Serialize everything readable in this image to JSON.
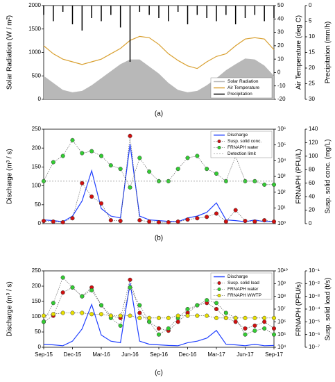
{
  "chart_data": [
    {
      "type": "line",
      "label": "(a)",
      "ylabel": "Solar Radiation (W / m²)",
      "y2label": "Air Temperature (deg C)",
      "y3label": "Precipitation (mm/h)",
      "x": [
        "Sep-15",
        "Oct-15",
        "Nov-15",
        "Dec-15",
        "Jan-16",
        "Feb-16",
        "Mar-16",
        "Apr-16",
        "May-16",
        "Jun-16",
        "Jul-16",
        "Aug-16",
        "Sep-16",
        "Oct-16",
        "Nov-16",
        "Dec-16",
        "Jan-17",
        "Feb-17",
        "Mar-17",
        "Apr-17",
        "May-17",
        "Jun-17",
        "Jul-17",
        "Aug-17",
        "Sep-17"
      ],
      "ylim": [
        0,
        2000
      ],
      "yticks": [
        0,
        500,
        1000,
        1500,
        2000
      ],
      "y2lim": [
        -20,
        50
      ],
      "y2ticks": [
        -20,
        -10,
        0,
        10,
        20,
        30,
        40,
        50
      ],
      "y3lim": [
        30,
        0
      ],
      "y3ticks": [
        30,
        25,
        20,
        15,
        10,
        5,
        0
      ],
      "legend": "lower right",
      "series": [
        {
          "name": "Solar Radiation",
          "color": "#b8b8b8",
          "style": "area",
          "axis": "y",
          "values": [
            500,
            350,
            200,
            150,
            180,
            300,
            450,
            600,
            750,
            850,
            850,
            700,
            550,
            350,
            200,
            150,
            180,
            300,
            450,
            620,
            750,
            870,
            850,
            720,
            500
          ]
        },
        {
          "name": "Air Temperature",
          "color": "#d9a030",
          "style": "line",
          "axis": "y2",
          "values": [
            20,
            14,
            10,
            8,
            6,
            8,
            10,
            14,
            18,
            24,
            27,
            26,
            21,
            14,
            9,
            5,
            3,
            8,
            12,
            14,
            20,
            25,
            26,
            25,
            17
          ]
        },
        {
          "name": "Precipitation",
          "color": "#000000",
          "style": "bars",
          "axis": "y3",
          "values": [
            3,
            5,
            2,
            6,
            8,
            4,
            5,
            3,
            7,
            18,
            2,
            3,
            4,
            5,
            2,
            6,
            3,
            4,
            5,
            3,
            6,
            4,
            3,
            5,
            4
          ]
        }
      ]
    },
    {
      "type": "line",
      "label": "(b)",
      "ylabel": "Discharge (m³ / s)",
      "y2label": "FRNAPH (PFU/L)",
      "y3label": "Susp. solid conc. (mg/L)",
      "x": [
        "Sep-15",
        "Oct-15",
        "Nov-15",
        "Dec-15",
        "Jan-16",
        "Feb-16",
        "Mar-16",
        "Apr-16",
        "May-16",
        "Jun-16",
        "Jul-16",
        "Aug-16",
        "Sep-16",
        "Oct-16",
        "Nov-16",
        "Dec-16",
        "Jan-17",
        "Feb-17",
        "Mar-17",
        "Apr-17",
        "May-17",
        "Jun-17",
        "Jul-17",
        "Aug-17",
        "Sep-17"
      ],
      "ylim": [
        0,
        250
      ],
      "yticks": [
        0,
        50,
        100,
        150,
        200,
        250
      ],
      "y2lim": [
        1,
        1000000
      ],
      "y2log": true,
      "y2ticks": [
        {
          "value": 1,
          "label": "10⁰"
        },
        {
          "value": 10,
          "label": "10¹"
        },
        {
          "value": 100,
          "label": "10²"
        },
        {
          "value": 1000,
          "label": "10³"
        },
        {
          "value": 10000,
          "label": "10⁴"
        },
        {
          "value": 100000,
          "label": "10⁵"
        },
        {
          "value": 1000000,
          "label": "10⁶"
        }
      ],
      "y3lim": [
        0,
        140
      ],
      "y3ticks": [
        0,
        20,
        40,
        60,
        80,
        100,
        120,
        140
      ],
      "legend": "upper right",
      "series": [
        {
          "name": "Discharge",
          "color": "#1f3fff",
          "style": "line",
          "axis": "y",
          "values": [
            10,
            8,
            5,
            20,
            60,
            140,
            40,
            20,
            15,
            210,
            20,
            10,
            8,
            6,
            5,
            15,
            20,
            30,
            55,
            10,
            8,
            5,
            10,
            5,
            6
          ]
        },
        {
          "name": "Susp. solid conc.",
          "color": "#d01010",
          "style": "dots",
          "axis": "y3",
          "values": [
            4,
            3,
            2,
            8,
            60,
            40,
            30,
            5,
            4,
            130,
            5,
            3,
            2,
            2,
            3,
            6,
            8,
            10,
            15,
            3,
            20,
            4,
            3,
            5,
            3
          ]
        },
        {
          "name": "FRNAPH water",
          "color": "#33cc33",
          "style": "dots",
          "axis": "y2",
          "values": [
            500,
            8000,
            20000,
            200000,
            30000,
            40000,
            20000,
            5000,
            3000,
            200,
            15000,
            2000,
            500,
            500,
            3000,
            15000,
            20000,
            3000,
            1500,
            500,
            20000,
            500,
            500,
            300,
            300
          ]
        },
        {
          "name": "Detection limit",
          "color": "#999999",
          "style": "hline",
          "axis": "y2",
          "value": 500
        }
      ]
    },
    {
      "type": "line",
      "label": "(c)",
      "ylabel": "Discharge (m³ / s)",
      "y2label": "FRNAPH (PFU/s)",
      "y3label": "Susp. solid load (t/s)",
      "x": [
        "Sep-15",
        "Oct-15",
        "Nov-15",
        "Dec-15",
        "Jan-16",
        "Feb-16",
        "Mar-16",
        "Apr-16",
        "May-16",
        "Jun-16",
        "Jul-16",
        "Aug-16",
        "Sep-16",
        "Oct-16",
        "Nov-16",
        "Dec-16",
        "Jan-17",
        "Feb-17",
        "Mar-17",
        "Apr-17",
        "May-17",
        "Jun-17",
        "Jul-17",
        "Aug-17",
        "Sep-17"
      ],
      "xticks": [
        "Sep-15",
        "Dec-15",
        "Mar-16",
        "Jun-16",
        "Sep-16",
        "Dec-16",
        "Mar-17",
        "Jun-17",
        "Sep-17"
      ],
      "ylim": [
        0,
        250
      ],
      "yticks": [
        0,
        50,
        100,
        150,
        200,
        250
      ],
      "y2lim": [
        10000,
        10000000000
      ],
      "y2log": true,
      "y2ticks": [
        {
          "value": 10000,
          "label": "10⁴"
        },
        {
          "value": 100000,
          "label": "10⁵"
        },
        {
          "value": 1000000,
          "label": "10⁶"
        },
        {
          "value": 10000000,
          "label": "10⁷"
        },
        {
          "value": 100000000,
          "label": "10⁸"
        },
        {
          "value": 1000000000,
          "label": "10⁹"
        },
        {
          "value": 10000000000,
          "label": "10¹⁰"
        }
      ],
      "y3lim": [
        1e-07,
        0.1
      ],
      "y3log": true,
      "y3ticks": [
        {
          "value": 1e-07,
          "label": "10⁻⁷"
        },
        {
          "value": 1e-06,
          "label": "10⁻⁶"
        },
        {
          "value": 1e-05,
          "label": "10⁻⁵"
        },
        {
          "value": 0.0001,
          "label": "10⁻⁴"
        },
        {
          "value": 0.001,
          "label": "10⁻³"
        },
        {
          "value": 0.01,
          "label": "10⁻²"
        },
        {
          "value": 0.1,
          "label": "10⁻¹"
        }
      ],
      "legend": "upper right",
      "series": [
        {
          "name": "Discharge",
          "color": "#1f3fff",
          "style": "line",
          "axis": "y",
          "values": [
            10,
            8,
            5,
            20,
            60,
            140,
            40,
            20,
            15,
            210,
            20,
            10,
            8,
            6,
            5,
            15,
            20,
            30,
            55,
            10,
            8,
            5,
            10,
            5,
            6
          ]
        },
        {
          "name": "Susp. solid load",
          "color": "#d01010",
          "style": "dots",
          "axis": "y3",
          "values": [
            1e-05,
            3e-05,
            0.002,
            0.005,
            0.001,
            0.005,
            0.0002,
            3e-05,
            2e-05,
            0.02,
            5e-05,
            1e-05,
            3e-06,
            2e-06,
            1e-05,
            5e-05,
            0.0002,
            0.0003,
            0.0001,
            2e-05,
            1e-05,
            3e-06,
            5e-06,
            1e-05,
            3e-06
          ]
        },
        {
          "name": "FRNAPH water",
          "color": "#33cc33",
          "style": "dots",
          "axis": "y2",
          "values": [
            1000000,
            30000000,
            3000000000,
            500000000,
            100000000,
            300000000,
            20000000,
            2000000,
            500000,
            500000000,
            20000000,
            1000000,
            100000,
            300000,
            2000000,
            10000000,
            20000000,
            50000000,
            30000000,
            5000000,
            2000000,
            100000,
            200000,
            300000,
            100000
          ]
        },
        {
          "name": "FRNAPH WWTP",
          "color": "#e8e000",
          "style": "dots",
          "axis": "y2",
          "values": [
            3000000,
            4000000,
            5000000,
            5000000,
            5000000,
            4000000,
            4000000,
            3000000,
            3000000,
            3000000,
            2000000,
            2000000,
            2000000,
            2000000,
            3000000,
            3000000,
            3000000,
            3000000,
            2000000,
            2000000,
            2000000,
            2000000,
            2000000,
            2000000,
            2000000
          ]
        }
      ]
    }
  ]
}
